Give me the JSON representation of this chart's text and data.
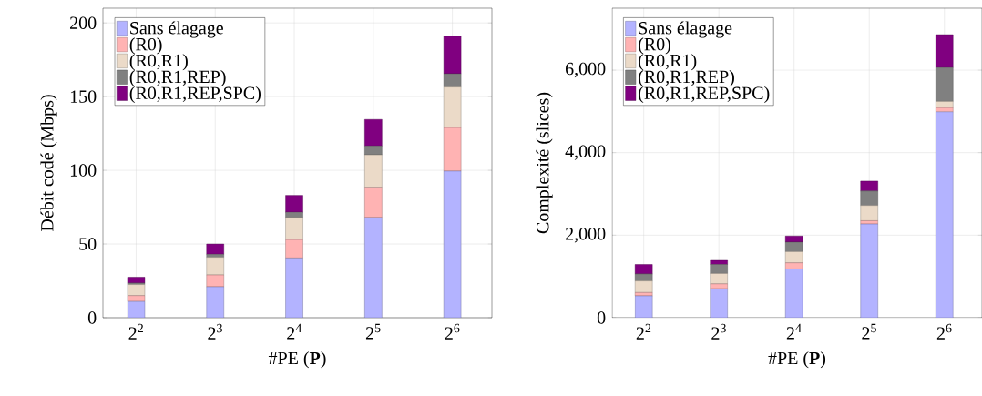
{
  "chart_data": [
    {
      "type": "bar",
      "stacked": true,
      "xlabel": "#PE (**P**)",
      "ylabel": "Débit codé (Mbps)",
      "categories": [
        "2$^{2}$",
        "2$^{3}$",
        "2$^{4}$",
        "2$^{5}$",
        "2$^{6}$"
      ],
      "series": [
        {
          "name": "Sans élagage",
          "color": "#b3b3ff",
          "values": [
            11,
            21,
            40.5,
            68,
            99.5
          ]
        },
        {
          "name": "(R0)",
          "color": "#ffb3b3",
          "values": [
            4,
            8,
            12.5,
            20.5,
            29.5
          ]
        },
        {
          "name": "(R0,R1)",
          "color": "#ebdac8",
          "values": [
            7.5,
            12,
            15,
            22,
            27.5
          ]
        },
        {
          "name": "(R0,R1,REP)",
          "color": "#808080",
          "values": [
            1,
            2,
            3.5,
            6,
            9
          ]
        },
        {
          "name": "(R0,R1,REP,SPC)",
          "color": "#800080",
          "values": [
            4,
            7,
            11.5,
            18,
            25.5
          ]
        }
      ],
      "ylim": [
        0,
        210
      ],
      "yticks": [
        0,
        50,
        100,
        150,
        200
      ],
      "grid": true,
      "legend": "top left"
    },
    {
      "type": "bar",
      "stacked": true,
      "xlabel": "#PE (**P**)",
      "ylabel": "Complexité (slices)",
      "categories": [
        "2$^{2}$",
        "2$^{3}$",
        "2$^{4}$",
        "2$^{5}$",
        "2$^{6}$"
      ],
      "series": [
        {
          "name": "Sans élagage",
          "color": "#b3b3ff",
          "values": [
            530,
            700,
            1180,
            2270,
            4990
          ]
        },
        {
          "name": "(R0)",
          "color": "#ffb3b3",
          "values": [
            80,
            120,
            150,
            80,
            100
          ]
        },
        {
          "name": "(R0,R1)",
          "color": "#ebdac8",
          "values": [
            280,
            250,
            270,
            370,
            150
          ]
        },
        {
          "name": "(R0,R1,REP)",
          "color": "#808080",
          "values": [
            170,
            220,
            230,
            350,
            820
          ]
        },
        {
          "name": "(R0,R1,REP,SPC)",
          "color": "#800080",
          "values": [
            230,
            100,
            150,
            240,
            800
          ]
        }
      ],
      "ylim": [
        0,
        7500
      ],
      "yticks": [
        0,
        {
          "value": 2000,
          "label": "2,000"
        },
        {
          "value": 4000,
          "label": "4,000"
        },
        {
          "value": 6000,
          "label": "6,000"
        }
      ],
      "grid": true,
      "legend": "top left"
    }
  ]
}
